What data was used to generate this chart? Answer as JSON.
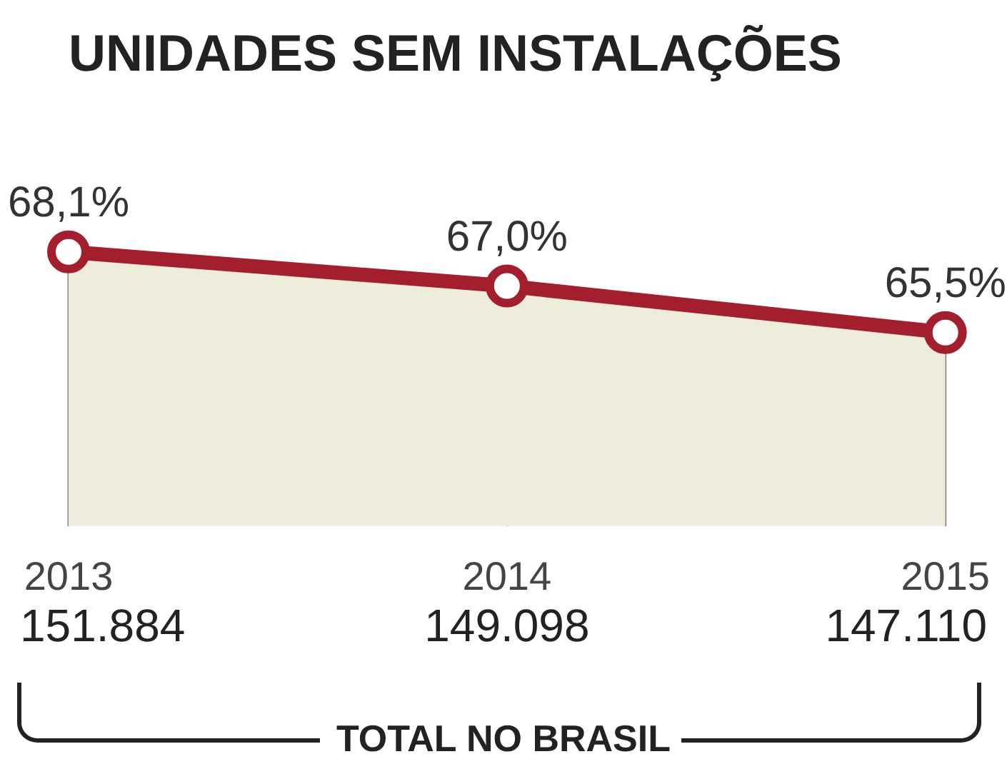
{
  "chart_data": {
    "type": "area",
    "title": "UNIDADES SEM INSTALAÇÕES",
    "categories": [
      "2013",
      "2014",
      "2015"
    ],
    "values": [
      68.1,
      67.0,
      65.5
    ],
    "value_labels": [
      "68,1%",
      "67,0%",
      "65,5%"
    ],
    "color": "#a31f2e",
    "marker": "circle",
    "annotations": [
      "151.884",
      "149.098",
      "147.110",
      "TOTAL NO BRASIL"
    ]
  }
}
